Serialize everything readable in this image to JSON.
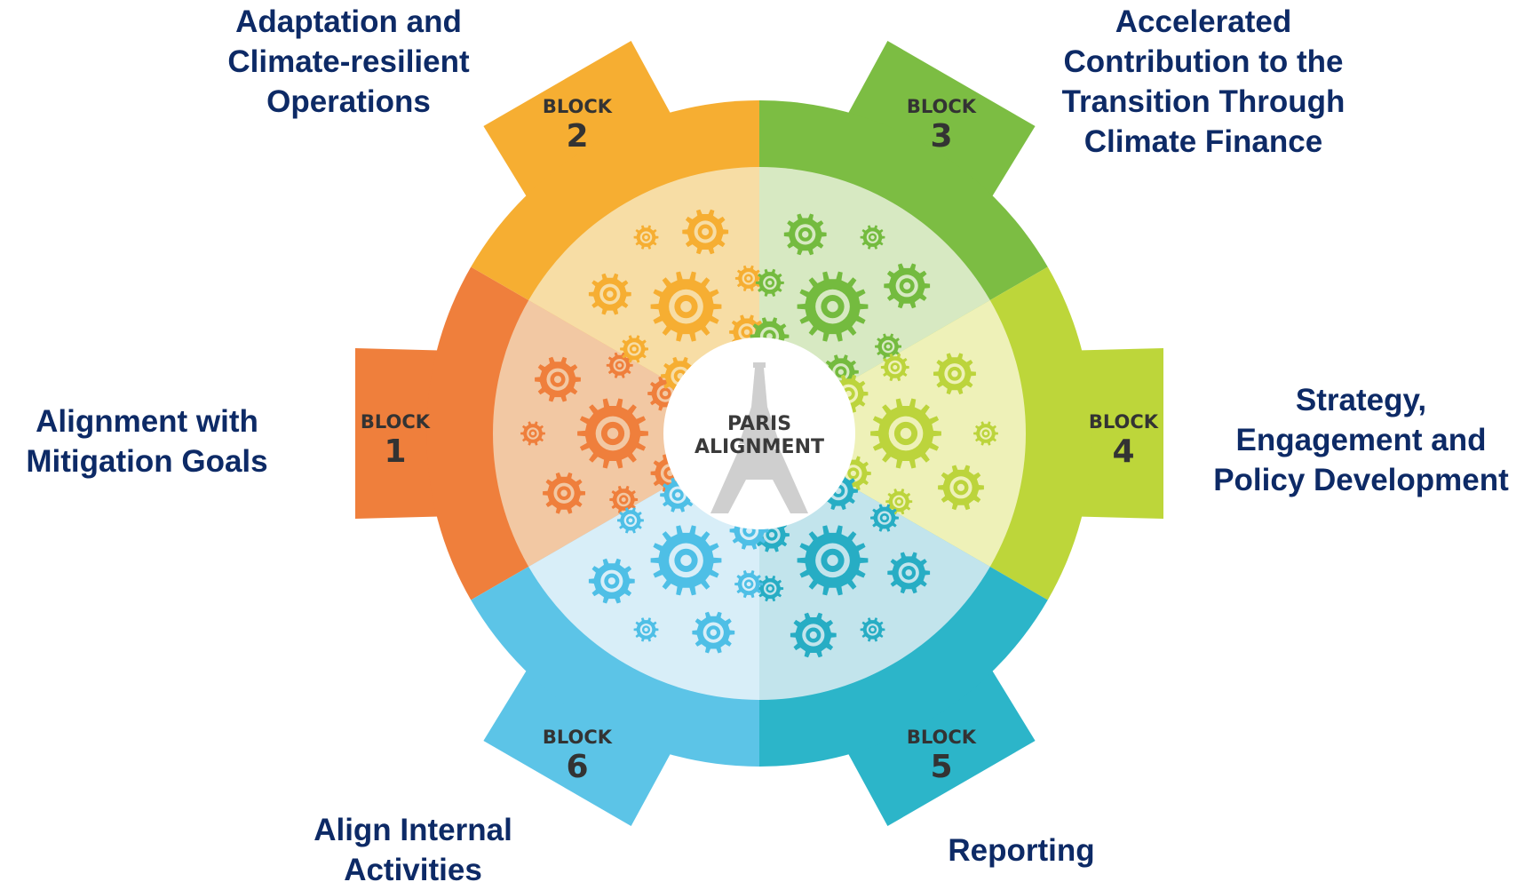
{
  "center": {
    "line1": "PARIS",
    "line2": "ALIGNMENT"
  },
  "block_word": "BLOCK",
  "blocks": [
    {
      "number": "1",
      "color": "#ef7f3c",
      "inner": "#f2c8a3",
      "gear": "#ef7f3c",
      "label": [
        "Alignment with",
        "Mitigation Goals"
      ]
    },
    {
      "number": "2",
      "color": "#f6ae32",
      "inner": "#f7dda5",
      "gear": "#f6ae32",
      "label": [
        "Adaptation and",
        "Climate-resilient",
        "Operations"
      ]
    },
    {
      "number": "3",
      "color": "#7cbd43",
      "inner": "#d7e9c2",
      "gear": "#74bb3f",
      "label": [
        "Accelerated",
        "Contribution to the",
        "Transition Through",
        "Climate Finance"
      ]
    },
    {
      "number": "4",
      "color": "#bdd63a",
      "inner": "#eef1b8",
      "gear": "#bcd43c",
      "label": [
        "Strategy,",
        "Engagement and",
        "Policy Development"
      ]
    },
    {
      "number": "5",
      "color": "#2cb5c9",
      "inner": "#c2e4ec",
      "gear": "#27adc4",
      "label": [
        "Reporting"
      ]
    },
    {
      "number": "6",
      "color": "#5cc4e7",
      "inner": "#d8eef8",
      "gear": "#4ebfe6",
      "label": [
        "Align Internal",
        "Activities"
      ]
    }
  ]
}
